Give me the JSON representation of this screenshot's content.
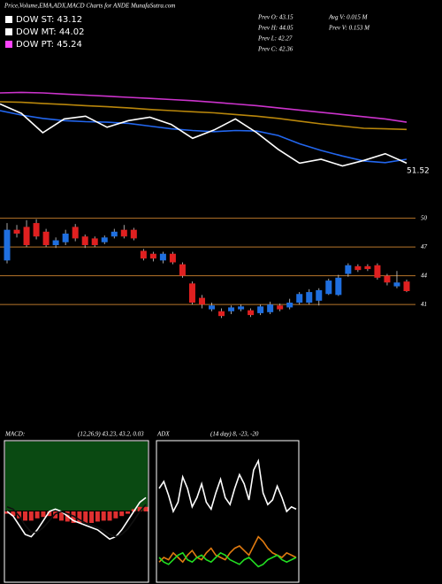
{
  "chart_data": [
    {
      "type": "line",
      "title": "Price,Volume,EMA,ADX,MACD Charts for ANDE MunafaSutra.com",
      "legend": [
        {
          "label": "DOW ST: 43.12",
          "color": "#ffffff"
        },
        {
          "label": "DOW MT: 44.02",
          "color": "#ffffff"
        },
        {
          "label": "DOW PT: 45.24",
          "color": "#ff44ff"
        }
      ],
      "info": [
        "Prev O: 43.15",
        "Prev H: 44.05",
        "Prev L: 42.27",
        "Prev C: 42.36",
        "Avg V: 0.015 M",
        "Prev V: 0.153 M"
      ],
      "annotation": "51.52",
      "ylim": [
        40,
        56
      ],
      "series": [
        {
          "name": null,
          "color": "#cc33cc",
          "values": [
            55.2,
            55.3,
            55.2,
            55.0,
            54.8,
            54.6,
            54.4,
            54.2,
            54.0,
            53.8,
            53.5,
            53.2,
            52.9,
            52.5,
            52.1,
            51.7,
            51.3,
            50.9,
            50.5,
            49.9
          ]
        },
        {
          "name": null,
          "color": "#b8860b",
          "values": [
            53.6,
            53.5,
            53.3,
            53.1,
            52.9,
            52.7,
            52.5,
            52.2,
            52.0,
            51.8,
            51.6,
            51.3,
            51.0,
            50.6,
            50.1,
            49.6,
            49.2,
            48.8,
            48.7,
            48.6
          ]
        },
        {
          "name": null,
          "color": "#2266ee",
          "values": [
            52.0,
            51.2,
            50.6,
            50.2,
            50.0,
            49.9,
            49.7,
            49.2,
            48.7,
            48.4,
            48.2,
            48.4,
            48.3,
            47.5,
            46.0,
            44.8,
            43.8,
            42.9,
            42.6,
            43.2
          ]
        },
        {
          "name": null,
          "color": "#ffffff",
          "values": [
            53.2,
            51.5,
            48.0,
            50.5,
            51.0,
            49.0,
            50.2,
            50.8,
            49.5,
            47.0,
            48.5,
            50.5,
            48.0,
            45.0,
            42.5,
            43.2,
            42.0,
            43.0,
            44.2,
            42.5
          ]
        }
      ]
    },
    {
      "type": "candlestick",
      "ylim": [
        28,
        52
      ],
      "yticks": [
        41,
        44,
        47,
        50
      ],
      "grid": true,
      "grid_color": "#b8762a",
      "up_color": "#1f6fe0",
      "down_color": "#e02020",
      "open": [
        45.6,
        48.8,
        49.1,
        49.5,
        48.6,
        47.2,
        47.5,
        49.1,
        48.1,
        47.9,
        47.5,
        48.1,
        48.8,
        48.8,
        46.6,
        46.3,
        45.6,
        46.3,
        45.2,
        43.2,
        41.7,
        40.5,
        40.3,
        40.3,
        40.5,
        40.4,
        40.1,
        40.2,
        40.9,
        40.7,
        41.2,
        41.2,
        41.4,
        42.1,
        42.0,
        44.2,
        45.0,
        45.0,
        45.1,
        44.0,
        42.9,
        43.4
      ],
      "close": [
        48.8,
        48.4,
        47.2,
        48.1,
        47.2,
        47.7,
        48.4,
        47.9,
        47.2,
        47.2,
        48.0,
        48.6,
        48.1,
        47.9,
        45.8,
        45.8,
        46.3,
        45.4,
        44.0,
        41.2,
        41.0,
        40.9,
        39.8,
        40.7,
        40.8,
        39.9,
        40.8,
        41.0,
        40.5,
        41.2,
        42.1,
        42.3,
        42.5,
        43.5,
        43.8,
        45.1,
        44.6,
        44.7,
        43.8,
        43.3,
        43.3,
        42.4
      ],
      "high": [
        49.5,
        49.3,
        49.8,
        49.9,
        48.9,
        48.0,
        48.8,
        49.4,
        48.3,
        48.1,
        48.2,
        48.9,
        49.3,
        49.0,
        46.8,
        46.5,
        46.5,
        46.5,
        45.4,
        43.4,
        42.0,
        41.2,
        40.6,
        40.9,
        41.0,
        40.6,
        41.0,
        41.3,
        41.1,
        41.6,
        42.3,
        42.6,
        42.7,
        43.7,
        44.1,
        45.3,
        45.2,
        45.2,
        45.3,
        44.2,
        44.5,
        43.6
      ],
      "low": [
        45.3,
        48.0,
        47.0,
        47.8,
        47.0,
        46.9,
        47.2,
        47.6,
        46.9,
        47.0,
        47.3,
        47.9,
        47.9,
        47.7,
        45.6,
        45.5,
        45.3,
        45.2,
        43.8,
        41.0,
        40.6,
        40.3,
        39.6,
        40.0,
        40.3,
        39.7,
        39.9,
        40.0,
        40.3,
        40.5,
        41.0,
        41.0,
        40.9,
        42.0,
        41.9,
        43.9,
        44.4,
        44.5,
        43.6,
        43.0,
        42.7,
        42.3
      ]
    },
    {
      "type": "macd",
      "title": "MACD:",
      "subtitle": "(12,26,9) 43.23, 43.2, 0.03",
      "ylim": [
        -1.5,
        1.5
      ],
      "background": "#0a4a12",
      "histogram": {
        "color": "#e03030",
        "values": [
          -0.05,
          -0.1,
          -0.15,
          -0.2,
          -0.2,
          -0.15,
          -0.12,
          -0.1,
          -0.15,
          -0.2,
          -0.22,
          -0.25,
          -0.25,
          -0.25,
          -0.25,
          -0.22,
          -0.2,
          -0.2,
          -0.15,
          -0.1,
          -0.05,
          0.05,
          0.1,
          0.1
        ]
      },
      "series": [
        {
          "name": null,
          "color": "#ffffff",
          "values": [
            0,
            -0.1,
            -0.3,
            -0.5,
            -0.55,
            -0.4,
            -0.2,
            0,
            0.05,
            0,
            -0.1,
            -0.2,
            -0.25,
            -0.3,
            -0.35,
            -0.4,
            -0.5,
            -0.6,
            -0.55,
            -0.4,
            -0.2,
            0,
            0.2,
            0.3
          ]
        },
        {
          "name": null,
          "color": "#111111",
          "values": [
            0.1,
            0.05,
            -0.1,
            -0.3,
            -0.45,
            -0.45,
            -0.35,
            -0.2,
            -0.05,
            0,
            -0.05,
            -0.1,
            -0.18,
            -0.25,
            -0.3,
            -0.35,
            -0.42,
            -0.5,
            -0.55,
            -0.5,
            -0.38,
            -0.2,
            0,
            0.15
          ]
        }
      ]
    },
    {
      "type": "adx",
      "title": "ADX",
      "subtitle": "(14 day) 8, -23, -20",
      "ylim": [
        0,
        60
      ],
      "background": "#000000",
      "series": [
        {
          "name": null,
          "color": "#ffffff",
          "values": [
            40,
            43,
            37,
            30,
            34,
            45,
            40,
            32,
            36,
            42,
            34,
            31,
            38,
            44,
            36,
            33,
            40,
            46,
            42,
            35,
            48,
            52,
            38,
            33,
            35,
            41,
            36,
            30,
            32,
            31
          ]
        },
        {
          "name": null,
          "color": "#e07a10",
          "values": [
            8,
            10,
            9,
            12,
            10,
            8,
            11,
            13,
            10,
            9,
            12,
            14,
            11,
            10,
            9,
            12,
            14,
            15,
            13,
            11,
            15,
            19,
            17,
            14,
            12,
            11,
            10,
            12,
            11,
            10
          ]
        },
        {
          "name": null,
          "color": "#22dd22",
          "values": [
            10,
            8,
            7,
            9,
            11,
            12,
            9,
            8,
            10,
            11,
            9,
            8,
            10,
            12,
            11,
            9,
            8,
            7,
            9,
            10,
            8,
            6,
            7,
            9,
            10,
            11,
            9,
            8,
            9,
            10
          ]
        }
      ]
    }
  ]
}
